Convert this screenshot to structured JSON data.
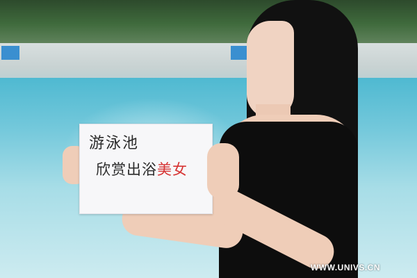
{
  "sign": {
    "line1": "游泳池",
    "line2_main": "欣赏出浴",
    "line2_accent": "美女"
  },
  "watermark": "WWW.UNIVS.CN",
  "colors": {
    "pool": "#73c8db",
    "paper": "#f7f7f9",
    "ink": "#2a2a2a",
    "accent_ink": "#d63333",
    "dress": "#0d0d0d"
  }
}
